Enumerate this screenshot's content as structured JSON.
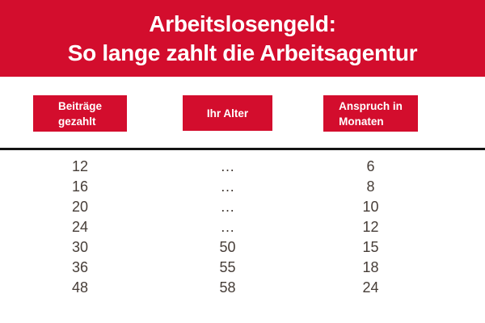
{
  "colors": {
    "accent": "#d30d2d",
    "banner_text": "#ffffff",
    "text": "#463d37",
    "divider": "#141414",
    "background": "#ffffff"
  },
  "banner": {
    "line1": "Arbeitslosengeld:",
    "line2": "So lange zahlt die Arbeitsagentur"
  },
  "column_headers": [
    {
      "line1": "Beiträge",
      "line2": "gezahlt"
    },
    {
      "line1": "Ihr Alter"
    },
    {
      "line1": "Anspruch in",
      "line2": "Monaten"
    }
  ],
  "chart_data": {
    "type": "table",
    "title": "Arbeitslosengeld: So lange zahlt die Arbeitsagentur",
    "columns": [
      "Beiträge gezahlt",
      "Ihr Alter",
      "Anspruch in Monaten"
    ],
    "rows": [
      [
        "12",
        "…",
        "6"
      ],
      [
        "16",
        "…",
        "8"
      ],
      [
        "20",
        "…",
        "10"
      ],
      [
        "24",
        "…",
        "12"
      ],
      [
        "30",
        "50",
        "15"
      ],
      [
        "36",
        "55",
        "18"
      ],
      [
        "48",
        "58",
        "24"
      ]
    ]
  }
}
